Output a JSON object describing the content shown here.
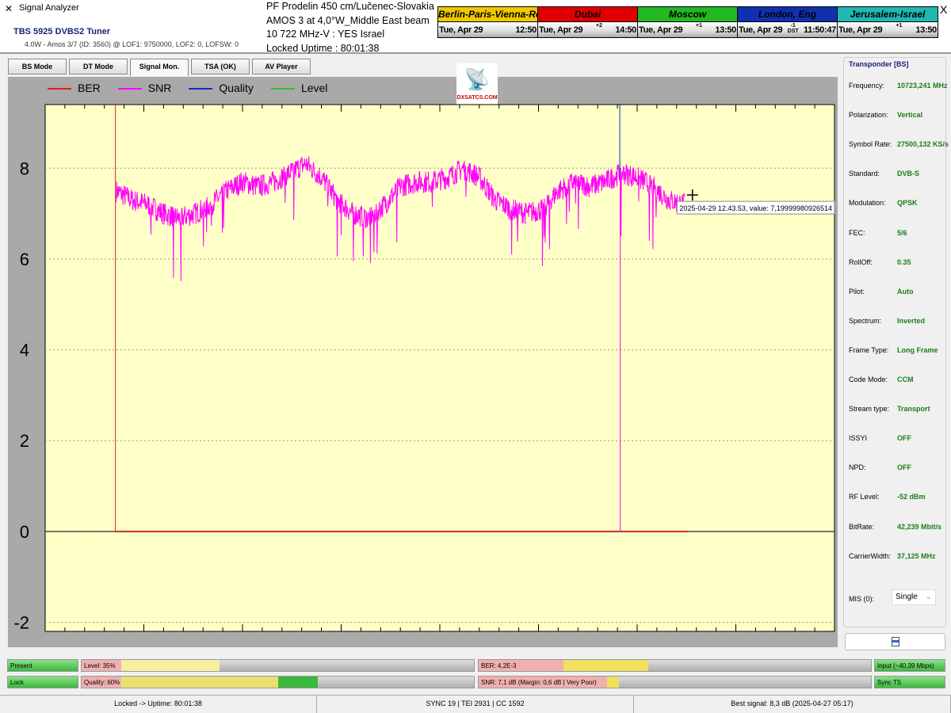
{
  "window": {
    "title": "Signal Analyzer",
    "close": "X"
  },
  "tuner": {
    "name": "TBS 5925 DVBS2 Tuner",
    "info": "4.0W - Amos 3/7 (ID: 3560) @ LOF1: 9750000, LOF2: 0, LOFSW: 0"
  },
  "sat_info": [
    "PF Prodelin 450 cm/Lučenec-Slovakia",
    "AMOS 3 at 4,0°W_Middle East beam",
    "10 722 MHz-V : YES Israel",
    "Locked Uptime : 80:01:38"
  ],
  "clocks": [
    {
      "name": "Berlin-Paris-Vienna-Roma",
      "date": "Tue, Apr 29",
      "offset": "",
      "time": "12:50",
      "color": "#f0c800",
      "text": "#000"
    },
    {
      "name": "Dubai",
      "date": "Tue, Apr 29",
      "offset": "+2",
      "time": "14:50",
      "color": "#e00000",
      "text": "#000"
    },
    {
      "name": "Moscow",
      "date": "Tue, Apr 29",
      "offset": "+1",
      "time": "13:50",
      "color": "#22b822",
      "text": "#000"
    },
    {
      "name": "London, Eng",
      "date": "Tue, Apr 29",
      "offset": "-1 DST",
      "time": "11:50:47",
      "color": "#1030b0",
      "text": "#000"
    },
    {
      "name": "Jerusalem-Israel",
      "date": "Tue, Apr 29",
      "offset": "+1",
      "time": "13:50",
      "color": "#20b8b0",
      "text": "#000"
    }
  ],
  "tabs": [
    {
      "label": "BS Mode"
    },
    {
      "label": "DT Mode"
    },
    {
      "label": "Signal Mon.",
      "active": true
    },
    {
      "label": "TSA (OK)"
    },
    {
      "label": "AV Player"
    }
  ],
  "logo": "DXSATCS.COM",
  "chart_data": {
    "type": "line",
    "legend": [
      {
        "name": "BER",
        "color": "#e02020"
      },
      {
        "name": "SNR",
        "color": "#ff00ff"
      },
      {
        "name": "Quality",
        "color": "#1030c0"
      },
      {
        "name": "Level",
        "color": "#30c030"
      }
    ],
    "legend_placement": "top-left",
    "ylim": [
      -2.2,
      9.4
    ],
    "xlim": [
      0,
      100
    ],
    "yticks": [
      -2,
      0,
      2,
      4,
      6,
      8
    ],
    "grid": true,
    "snr": {
      "x": [
        9,
        11,
        13,
        15,
        17,
        19,
        21,
        23,
        25,
        27,
        29,
        31,
        33,
        35,
        37,
        39,
        41,
        43,
        45,
        47,
        49,
        51,
        53,
        55,
        57,
        59,
        61,
        63,
        65,
        67,
        69,
        71,
        73,
        75,
        77,
        79,
        81
      ],
      "y": [
        7.5,
        7.3,
        7.2,
        7.0,
        6.9,
        7.0,
        7.2,
        7.5,
        7.7,
        7.6,
        7.7,
        7.9,
        8.1,
        7.8,
        7.3,
        7.0,
        6.9,
        7.2,
        7.6,
        7.7,
        7.7,
        7.8,
        8.0,
        7.8,
        7.3,
        7.1,
        7.0,
        7.1,
        7.5,
        7.7,
        7.6,
        7.7,
        7.9,
        7.8,
        7.6,
        7.3,
        7.2
      ]
    },
    "snr_dropout_x": 72.8,
    "ber_marker_x": 8.9,
    "quality_marker_x": 72.8,
    "tooltip": "2025-04-29 12.43.53, value: 7,19999980926514"
  },
  "panel": {
    "title": "Transponder [BS]",
    "rows": [
      {
        "k": "Frequency:",
        "v": "10723,241 MHz"
      },
      {
        "k": "Polarization:",
        "v": "Vertical"
      },
      {
        "k": "Symbol Rate:",
        "v": "27500,132 KS/s"
      },
      {
        "k": "Standard:",
        "v": "DVB-S"
      },
      {
        "k": "Modulation:",
        "v": "QPSK"
      },
      {
        "k": "FEC:",
        "v": "5/6"
      },
      {
        "k": "RollOff:",
        "v": "0.35"
      },
      {
        "k": "Pilot:",
        "v": "Auto"
      },
      {
        "k": "Spectrum:",
        "v": "Inverted"
      },
      {
        "k": "Frame Type:",
        "v": "Long Frame"
      },
      {
        "k": "Code Mode:",
        "v": "CCM"
      },
      {
        "k": "Stream type:",
        "v": "Transport"
      },
      {
        "k": "ISSYI",
        "v": "OFF"
      },
      {
        "k": "NPD:",
        "v": "OFF"
      },
      {
        "k": "RF Level:",
        "v": "-52 dBm"
      },
      {
        "k": "BitRate:",
        "v": "42,239 Mbit/s"
      },
      {
        "k": "CarrierWidth:",
        "v": "37,125 MHz"
      }
    ],
    "mis_label": "MIS (0):",
    "mis_value": "Single"
  },
  "meters": {
    "present": "Present",
    "lock": "Lock",
    "level": "Level: 35%",
    "level_pct": 35,
    "quality": "Quality: 60%",
    "quality_pct": 60,
    "ber": "BER: 4,2E-3",
    "snr": "SNR: 7,1 dB (Margin: 0,6 dB | Very Poor)",
    "input": "Input (~40,39 Mbps)",
    "sync": "Sync TS"
  },
  "status": [
    "Locked -> Uptime: 80:01:38",
    "SYNC 19 | TEI 2931 | CC 1592",
    "Best signal: 8,3 dB (2025-04-27 05:17)"
  ]
}
